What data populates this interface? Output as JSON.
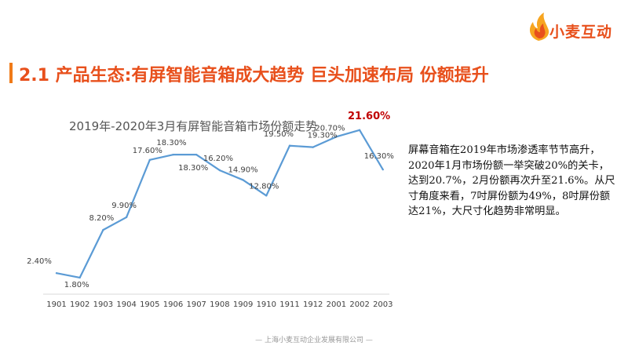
{
  "brand": {
    "name": "小麦互动",
    "logo_icon": "flame-icon",
    "accent": "#e8501c",
    "flame_colors": [
      "#f7a520",
      "#e8501c"
    ]
  },
  "page": {
    "title": "2.1 产品生态:有屏智能音箱成大趋势 巨头加速布局 份额提升"
  },
  "chart_data": {
    "type": "line",
    "title": "2019年-2020年3月有屏智能音箱市场份额走势",
    "categories": [
      "1901",
      "1902",
      "1903",
      "1904",
      "1905",
      "1906",
      "1907",
      "1908",
      "1909",
      "1910",
      "1911",
      "1912",
      "2001",
      "2002",
      "2003"
    ],
    "series": [
      {
        "values": [
          2.4,
          1.8,
          8.2,
          9.9,
          17.6,
          18.3,
          18.3,
          16.2,
          14.9,
          12.8,
          19.5,
          19.3,
          20.7,
          21.6,
          16.3
        ]
      }
    ],
    "data_labels": [
      "2.40%",
      "1.80%",
      "8.20%",
      "9.90%",
      "17.60%",
      "18.30%",
      "18.30%",
      "16.20%",
      "14.90%",
      "12.80%",
      "19.50%",
      "19.30%",
      "20.70%",
      "21.60%",
      "16.30%"
    ],
    "highlight_index": 13,
    "highlight_color": "#c00000",
    "line_color": "#5b9bd5",
    "ylim": [
      0,
      25
    ],
    "grid": false,
    "legend": "none"
  },
  "description": "屏幕音箱在2019年市场渗透率节节高升，2020年1月市场份额一举突破20%的关卡，达到20.7%，2月份额再次升至21.6%。从尺寸角度来看，7吋屏份额为49%，8吋屏份额达21%，大尺寸化趋势非常明显。",
  "footer": "—  上海小麦互动企业发展有限公司  —"
}
